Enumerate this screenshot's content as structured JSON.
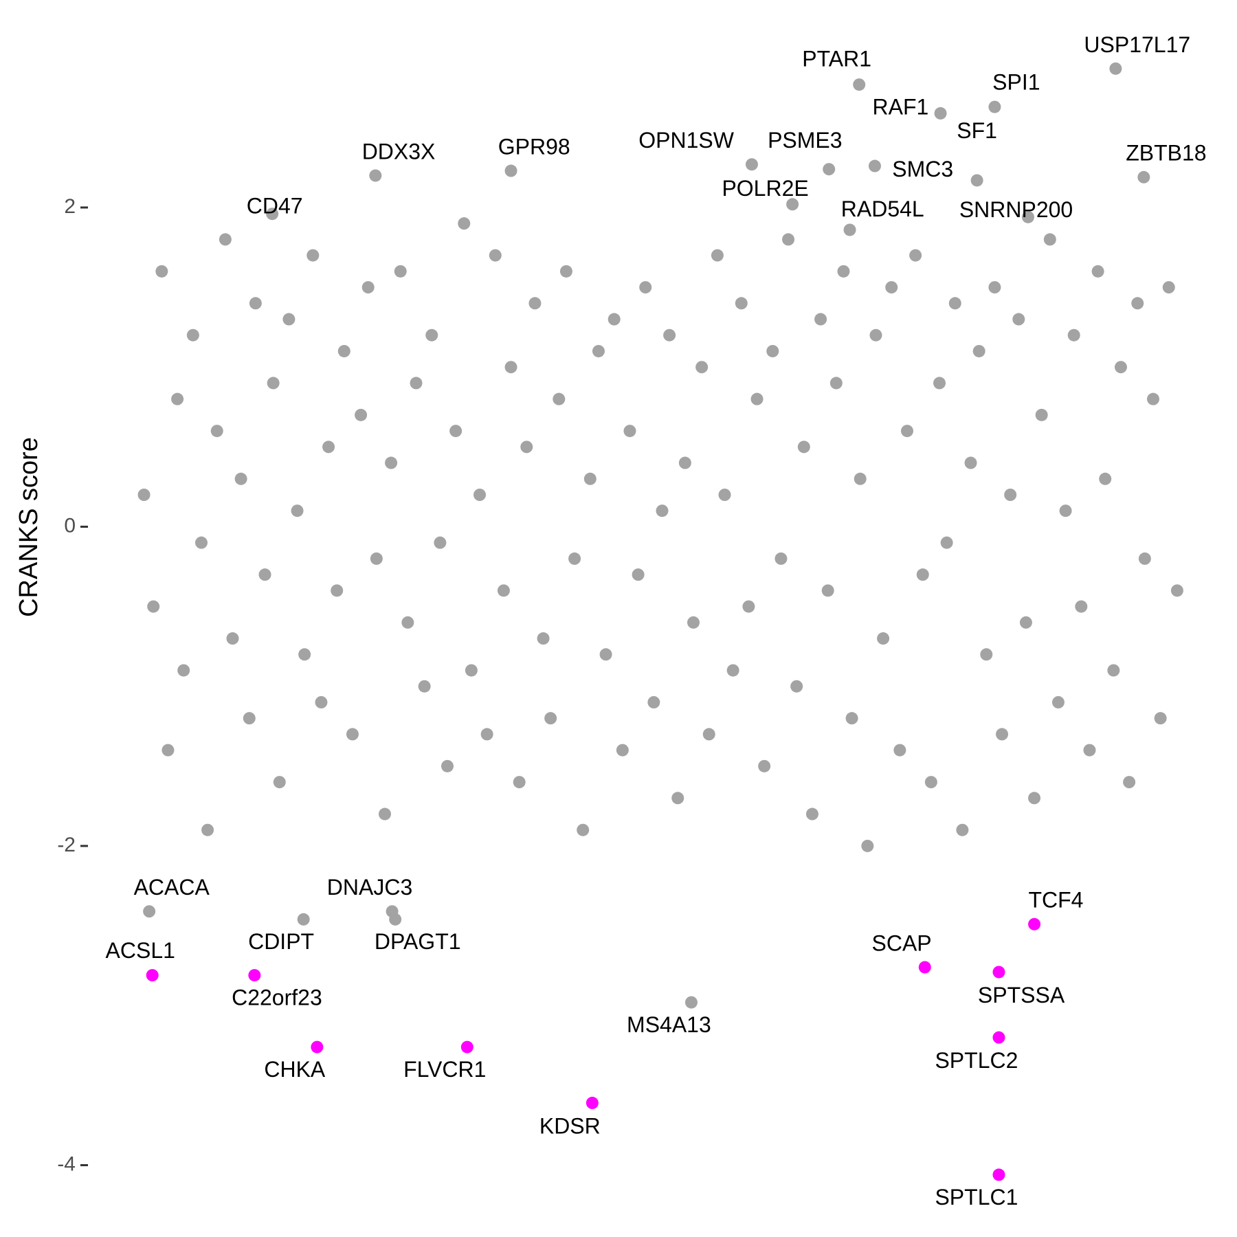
{
  "chart_data": {
    "type": "scatter",
    "y_label": "CRANKS score",
    "xlim": [
      0,
      100
    ],
    "ylim": [
      -4.45,
      3.3
    ],
    "yticks": [
      -4,
      -2,
      0,
      2
    ],
    "series": [
      {
        "color": "#a3a3a3",
        "x": [
          0.3,
          1.2,
          2.0,
          2.6,
          3.5,
          4.1,
          5.0,
          5.8,
          6.4,
          7.3,
          8.1,
          8.8,
          9.6,
          10.4,
          11.0,
          11.9,
          12.7,
          13.3,
          14.2,
          15.0,
          15.7,
          16.5,
          17.3,
          18.0,
          18.8,
          19.5,
          20.3,
          21.1,
          21.8,
          22.6,
          23.4,
          24.0,
          24.9,
          25.6,
          26.4,
          27.2,
          27.9,
          28.7,
          29.4,
          30.2,
          31.0,
          31.7,
          32.5,
          33.2,
          34.0,
          34.8,
          35.5,
          36.3,
          37.0,
          37.8,
          38.6,
          39.3,
          40.1,
          40.8,
          41.6,
          42.4,
          43.1,
          43.9,
          44.6,
          45.4,
          46.2,
          46.9,
          47.7,
          48.4,
          49.2,
          50.0,
          50.7,
          51.5,
          52.2,
          53.0,
          53.8,
          54.5,
          55.3,
          56.0,
          56.8,
          57.6,
          58.3,
          59.1,
          59.8,
          60.6,
          61.4,
          62.1,
          62.9,
          63.6,
          64.4,
          65.2,
          65.9,
          66.7,
          67.4,
          68.2,
          69.0,
          69.7,
          70.5,
          71.2,
          72.0,
          72.8,
          73.5,
          74.3,
          75.0,
          75.8,
          76.6,
          77.3,
          78.1,
          78.8,
          79.6,
          80.4,
          81.1,
          81.9,
          82.6,
          83.4,
          84.2,
          84.9,
          85.7,
          86.4,
          87.2,
          88.0,
          88.7,
          89.5,
          90.2,
          91.0,
          91.8,
          92.5,
          93.3,
          94.0,
          94.8,
          95.6,
          96.3,
          97.1,
          97.8,
          98.6,
          99.4
        ],
        "y": [
          0.2,
          -0.5,
          1.6,
          -1.4,
          0.8,
          -0.9,
          1.2,
          -0.1,
          -1.9,
          0.6,
          1.8,
          -0.7,
          0.3,
          -1.2,
          1.4,
          -0.3,
          0.9,
          -1.6,
          1.3,
          0.1,
          -0.8,
          1.7,
          -1.1,
          0.5,
          -0.4,
          1.1,
          -1.3,
          0.7,
          1.5,
          -0.2,
          -1.8,
          0.4,
          1.6,
          -0.6,
          0.9,
          -1.0,
          1.2,
          -0.1,
          -1.5,
          0.6,
          1.9,
          -0.9,
          0.2,
          -1.3,
          1.7,
          -0.4,
          1.0,
          -1.6,
          0.5,
          1.4,
          -0.7,
          -1.2,
          0.8,
          1.6,
          -0.2,
          -1.9,
          0.3,
          1.1,
          -0.8,
          1.3,
          -1.4,
          0.6,
          -0.3,
          1.5,
          -1.1,
          0.1,
          1.2,
          -1.7,
          0.4,
          -0.6,
          1.0,
          -1.3,
          1.7,
          0.2,
          -0.9,
          1.4,
          -0.5,
          0.8,
          -1.5,
          1.1,
          -0.2,
          1.8,
          -1.0,
          0.5,
          -1.8,
          1.3,
          -0.4,
          0.9,
          1.6,
          -1.2,
          0.3,
          -2.0,
          1.2,
          -0.7,
          1.5,
          -1.4,
          0.6,
          1.7,
          -0.3,
          -1.6,
          0.9,
          -0.1,
          1.4,
          -1.9,
          0.4,
          1.1,
          -0.8,
          1.5,
          -1.3,
          0.2,
          1.3,
          -0.6,
          -1.7,
          0.7,
          1.8,
          -1.1,
          0.1,
          1.2,
          -0.5,
          -1.4,
          1.6,
          0.3,
          -0.9,
          1.0,
          -1.6,
          1.4,
          -0.2,
          0.8,
          -1.2,
          1.5,
          -0.4
        ]
      },
      {
        "color": "#a3a3a3",
        "labels": [
          "USP17L17",
          "PTAR1",
          "SPI1",
          "RAF1",
          "SF1",
          "SMC3",
          "PSME3",
          "OPN1SW",
          "POLR2E",
          "RAD54L",
          "SNRNP200",
          "ZBTB18",
          "GPR98",
          "DDX3X",
          "CD47",
          "ACACA",
          "DNAJC3",
          "CDIPT",
          "DPAGT1",
          "MS4A13"
        ],
        "x": [
          93.5,
          68.9,
          81.9,
          76.7,
          80.2,
          70.4,
          66.0,
          58.6,
          62.5,
          68.0,
          85.1,
          96.2,
          35.5,
          22.5,
          12.6,
          0.8,
          24.1,
          15.6,
          24.4,
          52.8
        ],
        "y": [
          2.87,
          2.77,
          2.63,
          2.59,
          2.17,
          2.26,
          2.24,
          2.27,
          2.02,
          1.86,
          1.94,
          2.19,
          2.23,
          2.2,
          1.96,
          -2.41,
          -2.41,
          -2.46,
          -2.46,
          -2.98
        ]
      },
      {
        "color": "#ff00ff",
        "labels": [
          "ACSL1",
          "C22orf23",
          "CHKA",
          "FLVCR1",
          "KDSR",
          "SCAP",
          "SPTSSA",
          "TCF4",
          "SPTLC2",
          "SPTLC1"
        ],
        "x": [
          1.1,
          10.9,
          16.9,
          31.3,
          43.3,
          75.2,
          82.3,
          85.7,
          82.3,
          82.3
        ],
        "y": [
          -2.81,
          -2.81,
          -3.26,
          -3.26,
          -3.61,
          -2.76,
          -2.79,
          -2.49,
          -3.2,
          -4.06
        ]
      }
    ]
  }
}
